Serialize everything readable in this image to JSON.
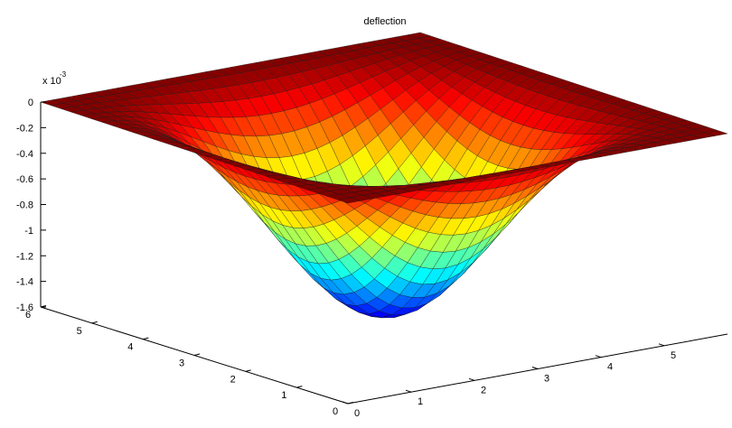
{
  "chart_data": {
    "type": "surface",
    "title": "deflection",
    "xlabel": "",
    "ylabel": "",
    "zlabel": "",
    "z_multiplier_label": "x 10",
    "z_multiplier_exponent": "-3",
    "x": {
      "ticks": [
        "0",
        "1",
        "2",
        "3",
        "4",
        "5"
      ],
      "range": [
        0,
        6
      ]
    },
    "y": {
      "ticks": [
        "0",
        "1",
        "2",
        "3",
        "4",
        "5",
        "6"
      ],
      "range": [
        0,
        6
      ]
    },
    "z": {
      "ticks": [
        "0",
        "-0.2",
        "-0.4",
        "-0.6",
        "-0.8",
        "-1",
        "-1.2",
        "-1.4",
        "-1.6"
      ],
      "range": [
        -1.6,
        0
      ]
    },
    "surface": {
      "function": "deflection peaks at center of plate; zero along edges",
      "z_min": -1.55,
      "grid_divisions": 30,
      "colormap": "jet"
    }
  }
}
